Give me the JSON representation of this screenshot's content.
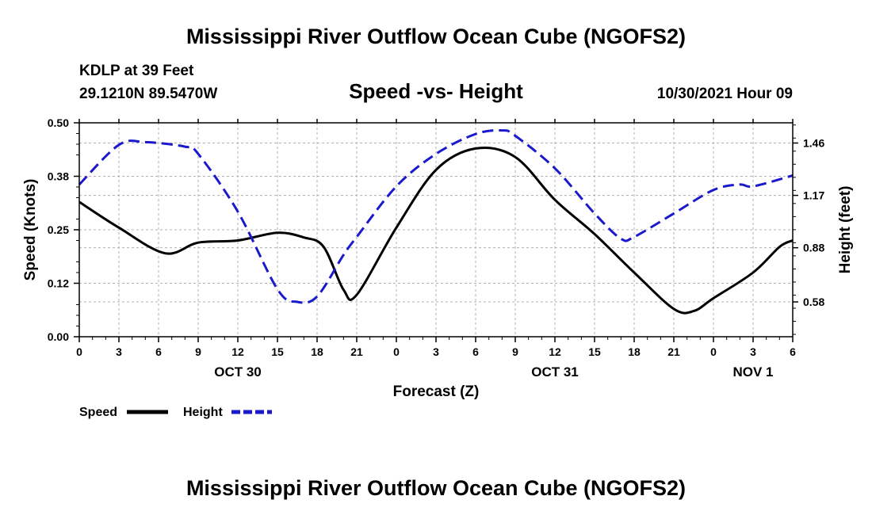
{
  "title": "Mississippi River Outflow Ocean Cube (NGOFS2)",
  "footer_title": "Mississippi River Outflow Ocean Cube (NGOFS2)",
  "station": {
    "name": "KDLP at 39 Feet",
    "coords": "29.1210N  89.5470W"
  },
  "chart_subtitle": "Speed -vs- Height",
  "timestamp": "10/30/2021 Hour 09",
  "colors": {
    "speed": "#000000",
    "height": "#1a1acc",
    "grid": "#b0b0b0"
  },
  "chart_data": {
    "type": "line",
    "title": "Speed -vs- Height",
    "xlabel": "Forecast (Z)",
    "ylabel": "Speed (Knots)",
    "y2label": "Height (feet)",
    "xlim": [
      0,
      54
    ],
    "ylim": [
      0,
      0.5
    ],
    "y2lim": [
      0.387,
      1.572
    ],
    "x_ticks": [
      0,
      3,
      6,
      9,
      12,
      15,
      18,
      21,
      24,
      27,
      30,
      33,
      36,
      39,
      42,
      45,
      48,
      51,
      54
    ],
    "x_tick_labels": [
      "0",
      "3",
      "6",
      "9",
      "12",
      "15",
      "18",
      "21",
      "0",
      "3",
      "6",
      "9",
      "12",
      "15",
      "18",
      "21",
      "0",
      "3",
      "6"
    ],
    "date_labels": [
      {
        "text": "OCT 30",
        "x": 12
      },
      {
        "text": "OCT 31",
        "x": 36
      },
      {
        "text": "NOV 1",
        "x": 51
      }
    ],
    "y_ticks": [
      0,
      0.125,
      0.25,
      0.375,
      0.5
    ],
    "y_tick_labels": [
      "0.00",
      "0.12",
      "0.25",
      "0.38",
      "0.50"
    ],
    "y2_ticks": [
      0.58,
      0.88,
      1.17,
      1.46
    ],
    "y2_tick_labels": [
      "0.58",
      "0.88",
      "1.17",
      "1.46"
    ],
    "grid": true,
    "series": [
      {
        "name": "Speed",
        "axis": "left",
        "style": "solid",
        "x": [
          0,
          3,
          6.5,
          9,
          12,
          15,
          17,
          18.5,
          20,
          21,
          24,
          27,
          30,
          33,
          36,
          39,
          42,
          45,
          46.5,
          48,
          51,
          53,
          54
        ],
        "y": [
          0.315,
          0.255,
          0.195,
          0.22,
          0.225,
          0.243,
          0.232,
          0.21,
          0.11,
          0.098,
          0.255,
          0.39,
          0.44,
          0.42,
          0.32,
          0.24,
          0.15,
          0.065,
          0.06,
          0.09,
          0.15,
          0.21,
          0.225
        ]
      },
      {
        "name": "Height",
        "axis": "right",
        "style": "dashed",
        "x": [
          0,
          3,
          5,
          8,
          9,
          12,
          15,
          16.5,
          18,
          20,
          21,
          24,
          27,
          30,
          32,
          33,
          36,
          39,
          41,
          42,
          45,
          48,
          50,
          51,
          54
        ],
        "y": [
          1.23,
          1.45,
          1.465,
          1.44,
          1.4,
          1.08,
          0.65,
          0.58,
          0.61,
          0.84,
          0.94,
          1.22,
          1.4,
          1.51,
          1.53,
          1.5,
          1.32,
          1.07,
          0.93,
          0.94,
          1.07,
          1.2,
          1.23,
          1.22,
          1.28
        ]
      }
    ],
    "legend": [
      {
        "label": "Speed",
        "style": "solid",
        "color": "#000000"
      },
      {
        "label": "Height",
        "style": "dashed",
        "color": "#1a1acc"
      }
    ],
    "legend_position": "bottom-left"
  }
}
